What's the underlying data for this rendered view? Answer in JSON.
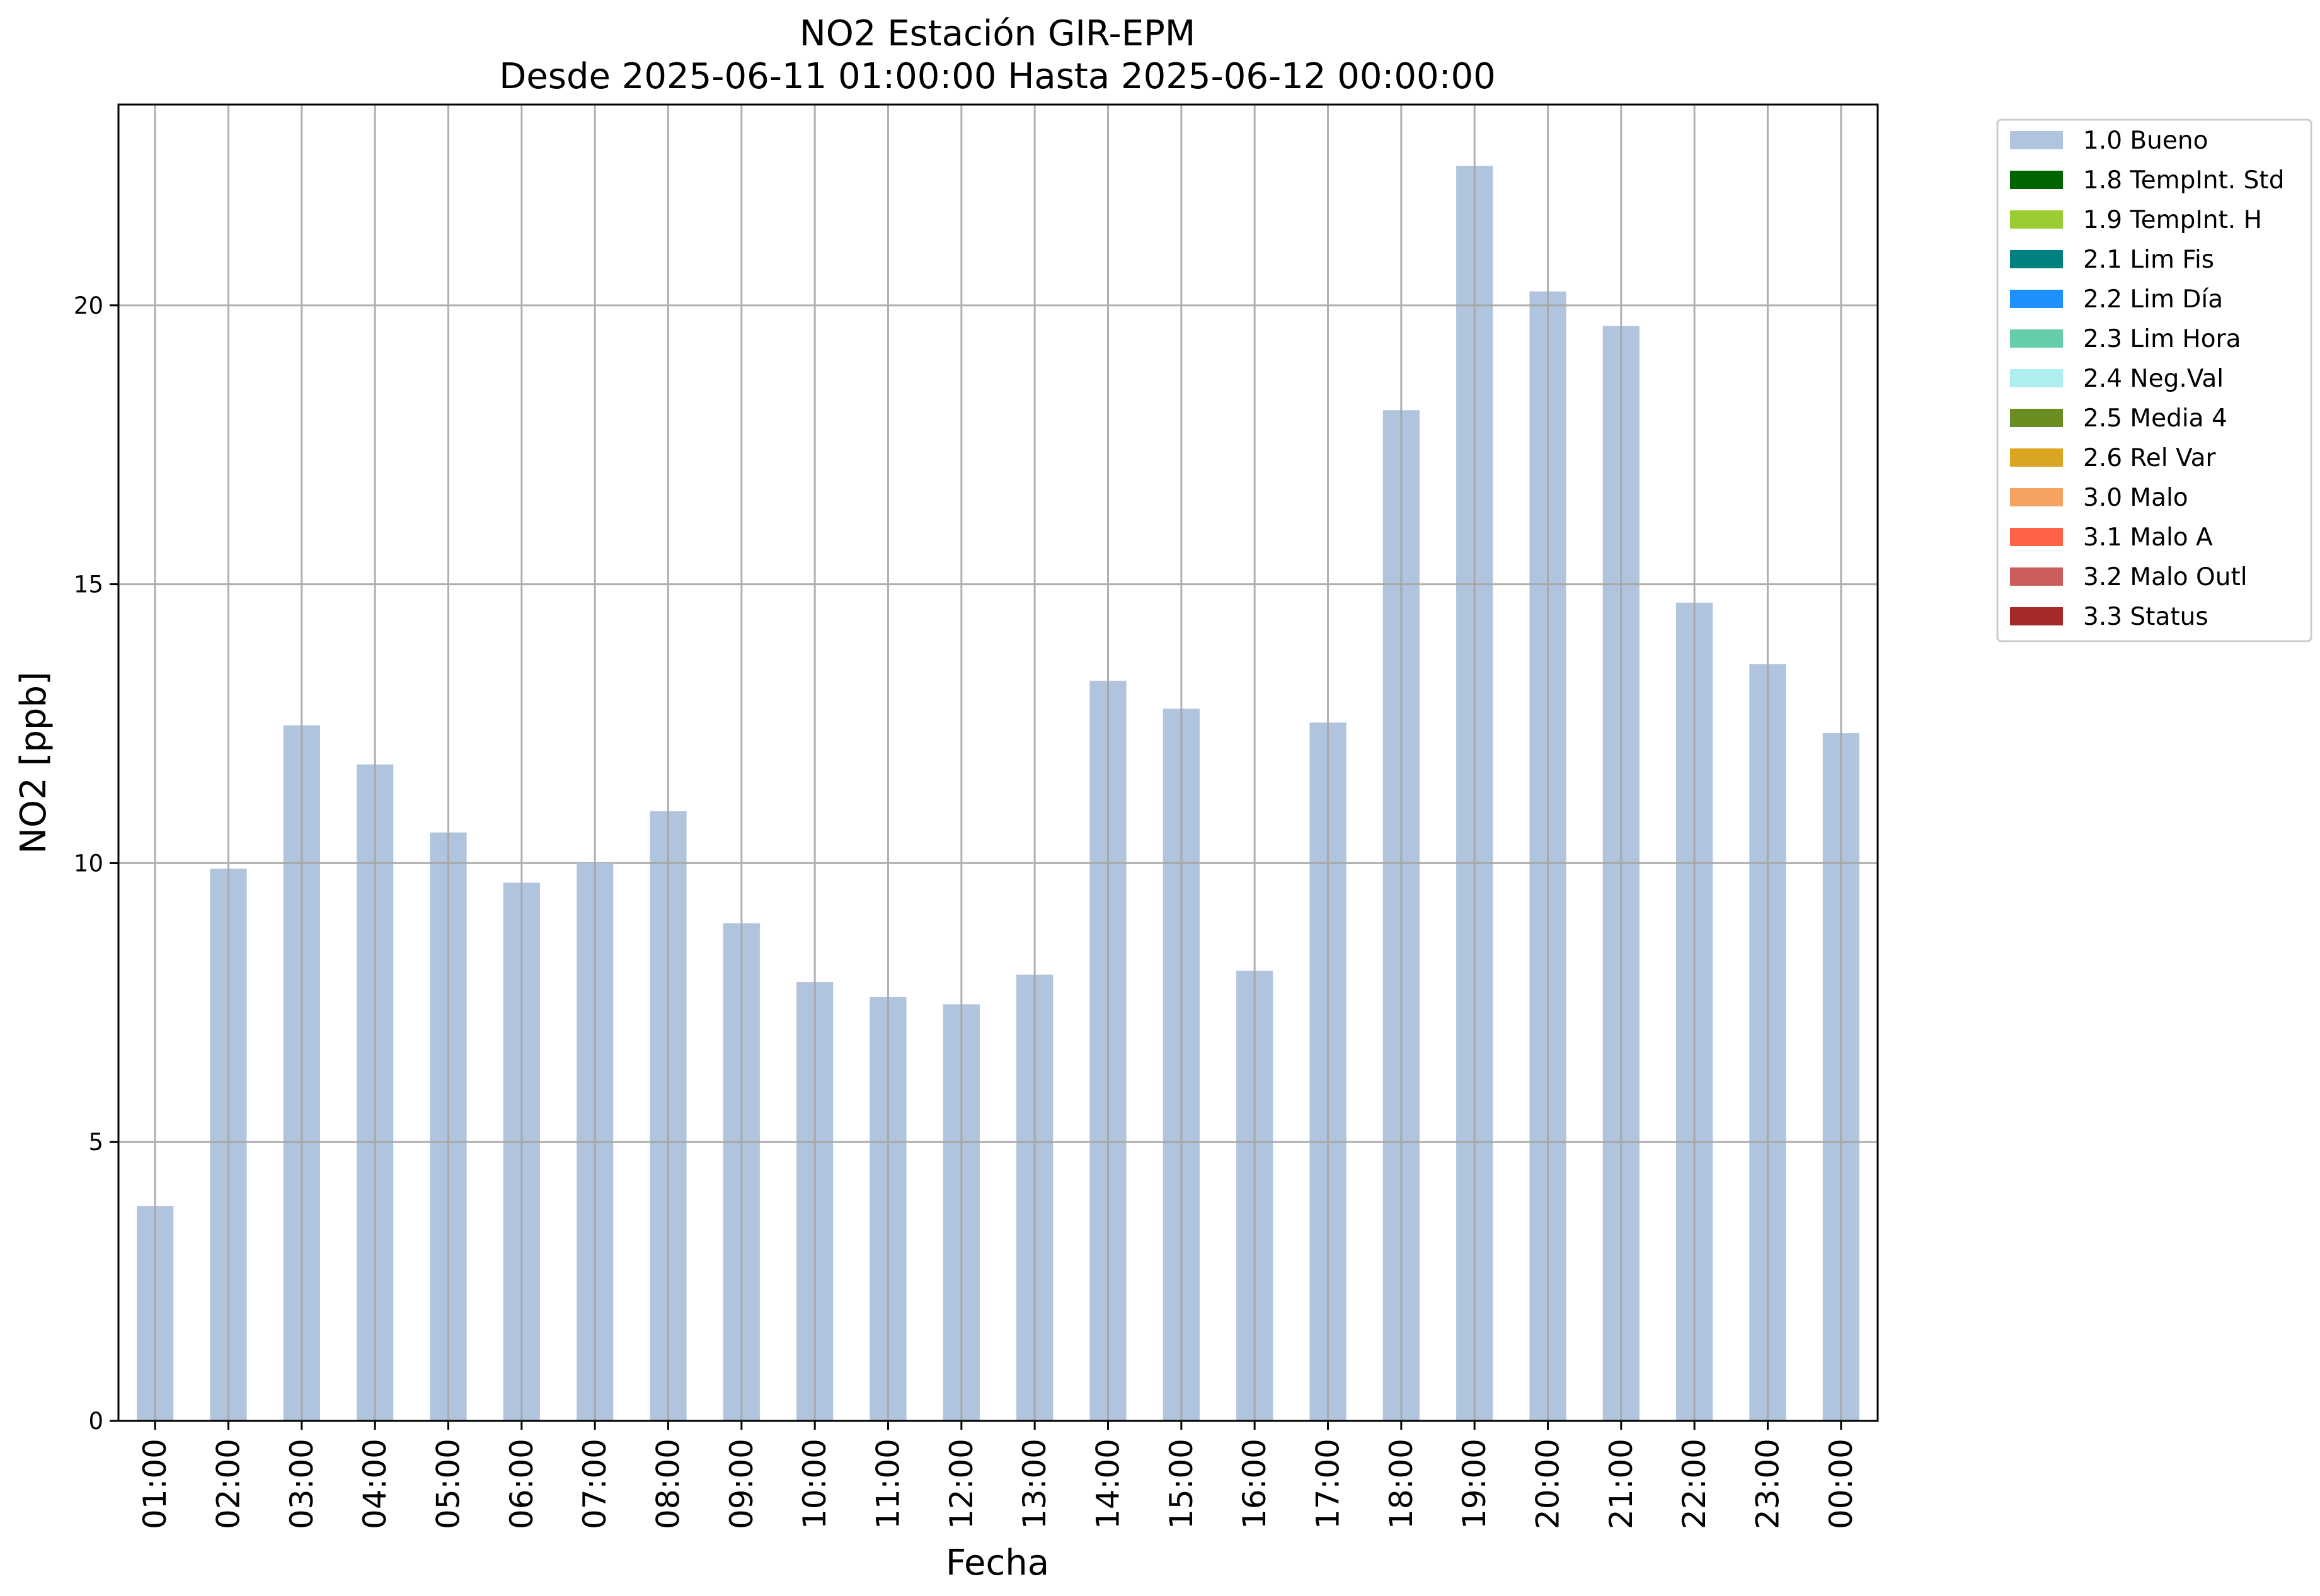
{
  "chart_data": {
    "type": "bar",
    "title": "NO2 Estación GIR-EPM",
    "subtitle": "Desde 2025-06-11 01:00:00 Hasta 2025-06-12 00:00:00",
    "xlabel": "Fecha",
    "ylabel": "NO2 [ppb]",
    "ylim": [
      0,
      23.6
    ],
    "yticks": [
      0,
      5,
      10,
      15,
      20
    ],
    "grid": true,
    "legend_position": "outside-top-right",
    "categories": [
      "01:00",
      "02:00",
      "03:00",
      "04:00",
      "05:00",
      "06:00",
      "07:00",
      "08:00",
      "09:00",
      "10:00",
      "11:00",
      "12:00",
      "13:00",
      "14:00",
      "15:00",
      "16:00",
      "17:00",
      "18:00",
      "19:00",
      "20:00",
      "21:00",
      "22:00",
      "23:00",
      "00:00"
    ],
    "series": [
      {
        "name": "1.0 Bueno",
        "color": "#b0c4de",
        "values": [
          3.85,
          9.9,
          12.47,
          11.77,
          10.55,
          9.65,
          10.0,
          10.93,
          8.92,
          7.87,
          7.6,
          7.47,
          8.0,
          13.27,
          12.77,
          8.07,
          12.52,
          18.12,
          22.5,
          20.25,
          19.63,
          14.67,
          13.57,
          12.33
        ]
      }
    ],
    "legend": [
      {
        "label": "1.0 Bueno",
        "color": "#b0c4de"
      },
      {
        "label": "1.8 TempInt. Std",
        "color": "#006400"
      },
      {
        "label": "1.9 TempInt. H",
        "color": "#9acd32"
      },
      {
        "label": "2.1 Lim Fis",
        "color": "#008080"
      },
      {
        "label": "2.2 Lim Día",
        "color": "#1e90ff"
      },
      {
        "label": "2.3 Lim Hora",
        "color": "#66cdaa"
      },
      {
        "label": "2.4 Neg.Val",
        "color": "#afeeee"
      },
      {
        "label": "2.5 Media 4",
        "color": "#6b8e23"
      },
      {
        "label": "2.6 Rel Var",
        "color": "#daa520"
      },
      {
        "label": "3.0 Malo",
        "color": "#f4a460"
      },
      {
        "label": "3.1 Malo A",
        "color": "#ff6347"
      },
      {
        "label": "3.2 Malo Outl",
        "color": "#cd5c5c"
      },
      {
        "label": "3.3 Status",
        "color": "#a52a2a"
      }
    ]
  }
}
